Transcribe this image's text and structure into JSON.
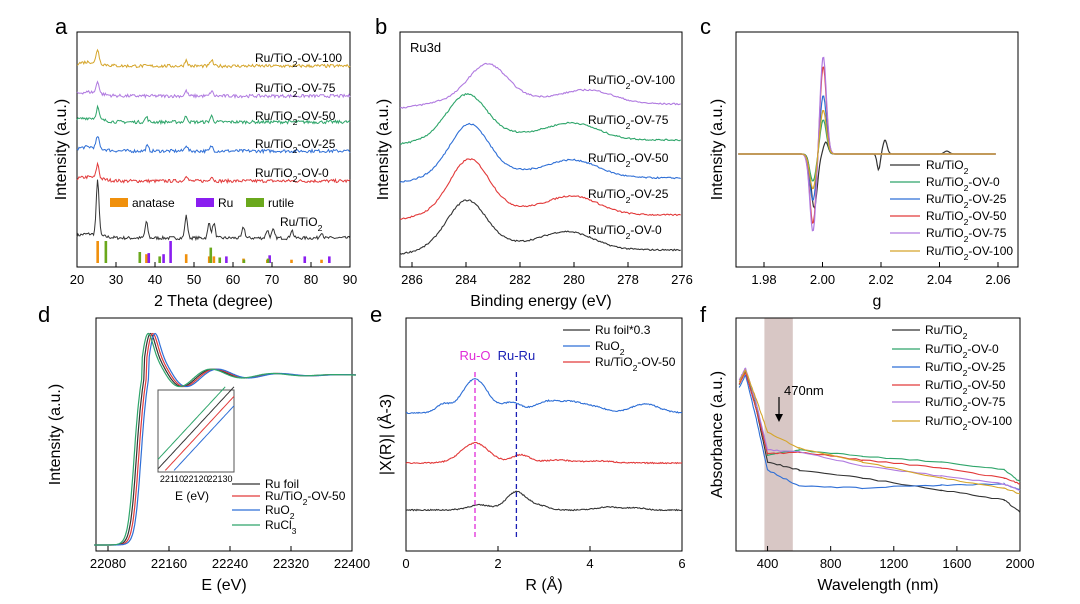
{
  "colors": {
    "black": "#333333",
    "red": "#e23a3a",
    "blue": "#2f6fd6",
    "green": "#2ea56a",
    "purple": "#b07ae0",
    "orange": "#d5a52a",
    "magenta": "#e02bd8",
    "navy": "#1a1fb5",
    "anatase": "#f0900c",
    "ru": "#8a1ef0",
    "rutile": "#6aa81c",
    "band": "#d8c7c5"
  },
  "chart_data": [
    {
      "panel": "a",
      "type": "line",
      "xlabel": "2 Theta (degree)",
      "ylabel": "Intensity (a.u.)",
      "xlim": [
        20,
        90
      ],
      "xticks": [
        "20",
        "30",
        "40",
        "50",
        "60",
        "70",
        "80",
        "90"
      ],
      "series": [
        {
          "name": "Ru/TiO2",
          "sub": "2",
          "color": "black",
          "offset": 0,
          "peaks": [
            [
              25.3,
              55
            ],
            [
              37.8,
              16
            ],
            [
              48.0,
              22
            ],
            [
              53.9,
              15
            ],
            [
              55.1,
              15
            ],
            [
              62.7,
              11
            ],
            [
              68.8,
              8
            ],
            [
              70.3,
              8
            ],
            [
              75.1,
              8
            ],
            [
              82.7,
              6
            ]
          ]
        },
        {
          "name": "Ru/TiO2-OV-0",
          "color": "red",
          "offset": 1,
          "peaks": [
            [
              25.3,
              14
            ],
            [
              48.0,
              6
            ],
            [
              54.5,
              5
            ]
          ]
        },
        {
          "name": "Ru/TiO2-OV-25",
          "color": "blue",
          "offset": 2,
          "peaks": [
            [
              25.3,
              12
            ],
            [
              38.0,
              5
            ],
            [
              48.0,
              6
            ],
            [
              54.5,
              5
            ]
          ]
        },
        {
          "name": "Ru/TiO2-OV-50",
          "color": "green",
          "offset": 3,
          "peaks": [
            [
              25.3,
              12
            ],
            [
              37.8,
              5
            ],
            [
              48.0,
              6
            ],
            [
              54.5,
              6
            ]
          ]
        },
        {
          "name": "Ru/TiO2-OV-75",
          "color": "purple",
          "offset": 4,
          "peaks": [
            [
              25.3,
              12
            ],
            [
              48.0,
              5
            ],
            [
              54.5,
              5
            ]
          ]
        },
        {
          "name": "Ru/TiO2-OV-100",
          "color": "orange",
          "offset": 5,
          "peaks": [
            [
              25.3,
              14
            ],
            [
              48.0,
              6
            ],
            [
              54.5,
              6
            ]
          ]
        }
      ],
      "reference_legend": [
        {
          "name": "anatase",
          "color": "anatase"
        },
        {
          "name": "Ru",
          "color": "ru"
        },
        {
          "name": "rutile",
          "color": "rutile"
        }
      ],
      "reference_sticks": {
        "anatase": [
          [
            25.3,
            1.0
          ],
          [
            37.8,
            0.4
          ],
          [
            48.0,
            0.4
          ],
          [
            53.9,
            0.3
          ],
          [
            55.1,
            0.3
          ],
          [
            62.7,
            0.2
          ],
          [
            68.8,
            0.15
          ],
          [
            75.0,
            0.15
          ],
          [
            82.7,
            0.15
          ]
        ],
        "Ru": [
          [
            38.4,
            0.45
          ],
          [
            42.2,
            0.4
          ],
          [
            44.0,
            1.0
          ],
          [
            58.3,
            0.3
          ],
          [
            69.4,
            0.35
          ],
          [
            78.4,
            0.3
          ],
          [
            84.7,
            0.3
          ]
        ],
        "rutile": [
          [
            27.4,
            1.0
          ],
          [
            36.1,
            0.5
          ],
          [
            41.2,
            0.3
          ],
          [
            54.3,
            0.7
          ],
          [
            56.6,
            0.25
          ],
          [
            62.8,
            0.15
          ],
          [
            69.0,
            0.2
          ]
        ]
      }
    },
    {
      "panel": "b",
      "type": "line",
      "xlabel": "Binding energy (eV)",
      "ylabel": "Intensity (a.u.)",
      "annotation": "Ru3d",
      "xlim": [
        287,
        276
      ],
      "xticks": [
        "286",
        "284",
        "282",
        "280",
        "278",
        "276"
      ],
      "series": [
        {
          "name": "Ru/TiO2-OV-0",
          "color": "black",
          "offset": 0,
          "peak1": 284.4,
          "peak2": 280.4,
          "h1": 46,
          "h2": 15
        },
        {
          "name": "Ru/TiO2-OV-25",
          "color": "red",
          "offset": 1,
          "peak1": 284.3,
          "peak2": 280.2,
          "h1": 52,
          "h2": 16
        },
        {
          "name": "Ru/TiO2-OV-50",
          "color": "blue",
          "offset": 2,
          "peak1": 284.3,
          "peak2": 280.2,
          "h1": 50,
          "h2": 15
        },
        {
          "name": "Ru/TiO2-OV-75",
          "color": "green",
          "offset": 3,
          "peak1": 284.4,
          "peak2": 280.2,
          "h1": 42,
          "h2": 14
        },
        {
          "name": "Ru/TiO2-OV-100",
          "color": "purple",
          "offset": 4,
          "peak1": 283.6,
          "peak2": 279.6,
          "h1": 35,
          "h2": 12
        }
      ]
    },
    {
      "panel": "c",
      "type": "line",
      "xlabel": "g",
      "ylabel": "Intensity (a.u.)",
      "xlim": [
        1.97,
        2.07
      ],
      "xticks": [
        "1.98",
        "2.00",
        "2.02",
        "2.04",
        "2.06"
      ],
      "series": [
        {
          "name": "Ru/TiO2",
          "sub": "2",
          "color": "black",
          "amp": 0.25
        },
        {
          "name": "Ru/TiO2-OV-0",
          "color": "green",
          "amp": 0.35
        },
        {
          "name": "Ru/TiO2-OV-25",
          "color": "blue",
          "amp": 0.6
        },
        {
          "name": "Ru/TiO2-OV-50",
          "color": "red",
          "amp": 0.9
        },
        {
          "name": "Ru/TiO2-OV-75",
          "color": "purple",
          "amp": 1.0
        },
        {
          "name": "Ru/TiO2-OV-100",
          "color": "orange",
          "amp": 0.45
        }
      ]
    },
    {
      "panel": "d",
      "type": "line",
      "xlabel": "E (eV)",
      "ylabel": "Intensity (a.u.)",
      "xlim": [
        22060,
        22410
      ],
      "xticks": [
        "22080",
        "22160",
        "22240",
        "22320",
        "22400"
      ],
      "inset": {
        "xlabel": "E (eV)",
        "xticks": [
          "22110",
          "22120",
          "22130"
        ],
        "xlim": [
          22106,
          22132
        ]
      },
      "series": [
        {
          "name": "Ru foil",
          "color": "black",
          "edge": 22117
        },
        {
          "name": "Ru/TiO2-OV-50",
          "color": "red",
          "edge": 22120
        },
        {
          "name": "RuO2",
          "sub": "2",
          "color": "blue",
          "edge": 22123
        },
        {
          "name": "RuCl3",
          "sub": "3",
          "color": "green",
          "edge": 22114
        }
      ]
    },
    {
      "panel": "e",
      "type": "line",
      "xlabel": "R (Å)",
      "ylabel": "|X(R)| (Å-3)",
      "xlim": [
        0,
        6
      ],
      "xticks": [
        "0",
        "2",
        "4",
        "6"
      ],
      "markers": [
        {
          "label": "Ru-O",
          "x": 1.5,
          "color": "magenta"
        },
        {
          "label": "Ru-Ru",
          "x": 2.4,
          "color": "navy"
        }
      ],
      "series": [
        {
          "name": "Ru foil*0.3",
          "color": "black",
          "offset": 0
        },
        {
          "name": "RuO2",
          "sub": "2",
          "color": "blue",
          "offset": 2
        },
        {
          "name": "Ru/TiO2-OV-50",
          "color": "red",
          "offset": 1
        }
      ]
    },
    {
      "panel": "f",
      "type": "line",
      "xlabel": "Wavelength (nm)",
      "ylabel": "Absorbance (a.u.)",
      "xlim": [
        200,
        2000
      ],
      "xticks": [
        "400",
        "800",
        "1200",
        "1600",
        "2000"
      ],
      "band": [
        380,
        560
      ],
      "annotation": "470nm",
      "series": [
        {
          "name": "Ru/TiO2",
          "sub": "2",
          "color": "black",
          "tail": 0.22
        },
        {
          "name": "Ru/TiO2-OV-0",
          "color": "green",
          "tail": 0.4
        },
        {
          "name": "Ru/TiO2-OV-25",
          "color": "blue",
          "tail": 0.5
        },
        {
          "name": "Ru/TiO2-OV-50",
          "color": "red",
          "tail": 0.42
        },
        {
          "name": "Ru/TiO2-OV-75",
          "color": "purple",
          "tail": 0.37
        },
        {
          "name": "Ru/TiO2-OV-100",
          "color": "orange",
          "tail": 0.33
        }
      ]
    }
  ],
  "panel_labels": [
    "a",
    "b",
    "c",
    "d",
    "e",
    "f"
  ]
}
